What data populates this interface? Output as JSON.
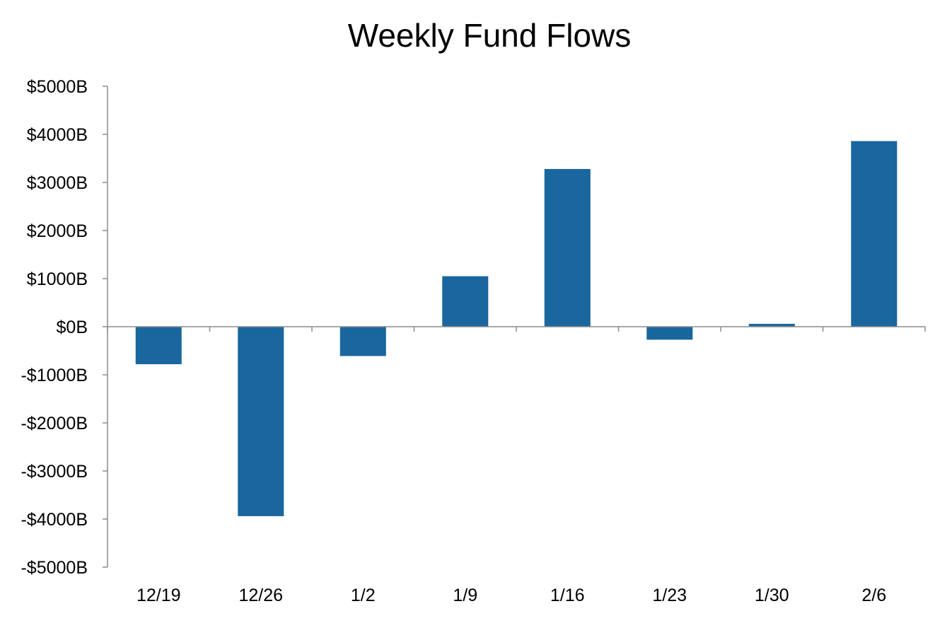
{
  "chart_data": {
    "type": "bar",
    "title": "Weekly Fund Flows",
    "xlabel": "",
    "ylabel": "",
    "categories": [
      "12/19",
      "12/26",
      "1/2",
      "1/9",
      "1/16",
      "1/23",
      "1/30",
      "2/6"
    ],
    "values": [
      -780,
      -3940,
      -610,
      1050,
      3280,
      -270,
      60,
      3860
    ],
    "value_unit": "$B",
    "ylim": [
      -5000,
      5000
    ],
    "yticks": [
      5000,
      4000,
      3000,
      2000,
      1000,
      0,
      -1000,
      -2000,
      -3000,
      -4000,
      -5000
    ],
    "ytick_labels": [
      "$5000B",
      "$4000B",
      "$3000B",
      "$2000B",
      "$1000B",
      "$0B",
      "-$1000B",
      "-$2000B",
      "-$3000B",
      "-$4000B",
      "-$5000B"
    ],
    "bar_color": "#1a669e",
    "grid": false,
    "legend": "none"
  }
}
